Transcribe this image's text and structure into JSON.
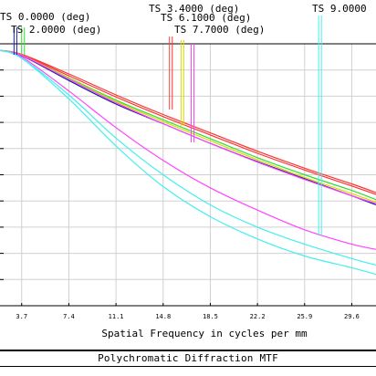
{
  "chart_data": {
    "type": "line",
    "title": "Polychromatic Diffraction MTF",
    "xlabel": "Spatial Frequency in cycles per mm",
    "xlim": [
      2.0,
      31.5
    ],
    "ylim": [
      0.0,
      1.0
    ],
    "x_ticks": [
      "3.7",
      "7.4",
      "11.1",
      "14.8",
      "18.5",
      "22.2",
      "25.9",
      "29.6"
    ],
    "x_tick_values": [
      3.7,
      7.4,
      11.1,
      14.8,
      18.5,
      22.2,
      25.9,
      29.6
    ],
    "grid": true,
    "legend": [
      {
        "label": "TS 0.0000 (deg)",
        "color": "#1a1aa6",
        "marker_x": 3.1
      },
      {
        "label": "TS 2.0000 (deg)",
        "color": "#33dd33",
        "marker_x": 3.7
      },
      {
        "label": "TS 3.4000 (deg)",
        "color": "#ff3333",
        "marker_x": 15.3
      },
      {
        "label": "TS 6.1000 (deg)",
        "color": "#d8d800",
        "marker_x": 16.2
      },
      {
        "label": "TS 7.7000 (deg)",
        "color": "#ff44ff",
        "marker_x": 17.0
      },
      {
        "label": "TS 9.0000",
        "color": "#44eeee",
        "marker_x": 27.0
      }
    ],
    "series": [
      {
        "color": "#1a1aa6",
        "x": [
          2.0,
          3.7,
          7.4,
          11.1,
          14.8,
          18.5,
          22.2,
          25.9,
          29.6,
          31.5
        ],
        "values": [
          0.975,
          0.955,
          0.86,
          0.77,
          0.695,
          0.62,
          0.55,
          0.485,
          0.42,
          0.385
        ]
      },
      {
        "color": "#33dd33",
        "x": [
          2.0,
          3.7,
          7.4,
          11.1,
          14.8,
          18.5,
          22.2,
          25.9,
          29.6,
          31.5
        ],
        "values": [
          0.975,
          0.958,
          0.87,
          0.785,
          0.71,
          0.638,
          0.565,
          0.5,
          0.44,
          0.405
        ]
      },
      {
        "color": "#ff3333",
        "x": [
          2.0,
          3.7,
          7.4,
          11.1,
          14.8,
          18.5,
          22.2,
          25.9,
          29.6,
          31.5
        ],
        "values": [
          0.975,
          0.96,
          0.885,
          0.805,
          0.73,
          0.66,
          0.59,
          0.525,
          0.465,
          0.432
        ]
      },
      {
        "color": "#ff3333",
        "x": [
          2.0,
          3.7,
          7.4,
          11.1,
          14.8,
          18.5,
          22.2,
          25.9,
          29.6,
          31.5
        ],
        "values": [
          0.975,
          0.958,
          0.878,
          0.797,
          0.722,
          0.652,
          0.582,
          0.518,
          0.457,
          0.425
        ]
      },
      {
        "color": "#d8d800",
        "x": [
          2.0,
          3.7,
          7.4,
          11.1,
          14.8,
          18.5,
          22.2,
          25.9,
          29.6,
          31.5
        ],
        "values": [
          0.975,
          0.957,
          0.868,
          0.78,
          0.703,
          0.63,
          0.557,
          0.49,
          0.428,
          0.395
        ]
      },
      {
        "color": "#ff44ff",
        "x": [
          2.0,
          3.7,
          7.4,
          11.1,
          14.8,
          18.5,
          22.2,
          25.9,
          29.6,
          31.5
        ],
        "values": [
          0.975,
          0.95,
          0.82,
          0.68,
          0.555,
          0.45,
          0.365,
          0.29,
          0.235,
          0.215
        ]
      },
      {
        "color": "#ff44ff",
        "x": [
          2.0,
          3.7,
          7.4,
          11.1,
          14.8,
          18.5,
          22.2,
          25.9,
          29.6,
          31.5
        ],
        "values": [
          0.975,
          0.956,
          0.865,
          0.775,
          0.695,
          0.62,
          0.548,
          0.482,
          0.42,
          0.39
        ]
      },
      {
        "color": "#44eeee",
        "x": [
          2.0,
          3.7,
          7.4,
          11.1,
          14.8,
          18.5,
          22.2,
          25.9,
          29.6,
          31.5
        ],
        "values": [
          0.975,
          0.945,
          0.79,
          0.61,
          0.455,
          0.34,
          0.255,
          0.19,
          0.145,
          0.12
        ]
      },
      {
        "color": "#44eeee",
        "x": [
          2.0,
          3.7,
          7.4,
          11.1,
          14.8,
          18.5,
          22.2,
          25.9,
          29.6,
          31.5
        ],
        "values": [
          0.975,
          0.945,
          0.805,
          0.64,
          0.5,
          0.385,
          0.3,
          0.235,
          0.18,
          0.155
        ]
      }
    ]
  }
}
